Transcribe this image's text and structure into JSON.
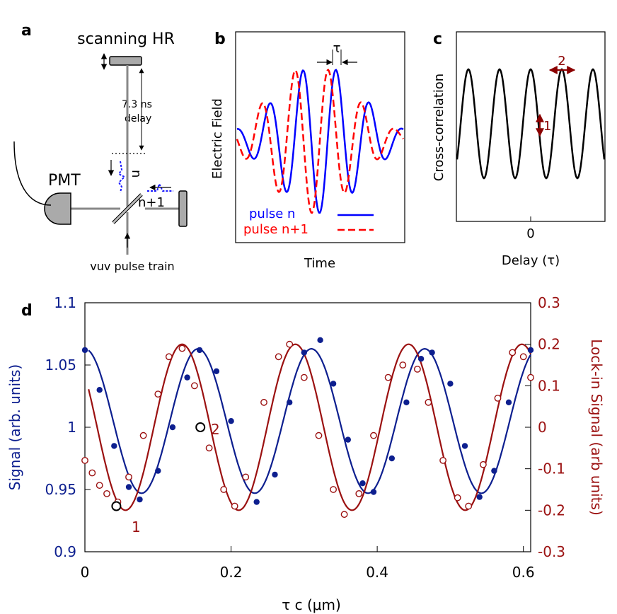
{
  "panel_a": {
    "letter": "a",
    "mirror_label": "scanning HR",
    "delay_value": "7.3 ns",
    "delay_word": "delay",
    "pmt_label": "PMT",
    "pulse_n": "n",
    "pulse_n1": "n+1",
    "beam_label": "vuv pulse train"
  },
  "panel_b": {
    "letter": "b",
    "ylabel": "Electric Field",
    "xlabel": "Time",
    "tau": "τ",
    "legend": [
      "pulse n",
      "pulse n+1"
    ],
    "colors": {
      "pulse_n": "#0000ff",
      "pulse_n1": "#ff0000"
    }
  },
  "panel_c": {
    "letter": "c",
    "ylabel": "Cross-correlation",
    "xlabel": "Delay (τ)",
    "xtick": "0",
    "marker1": "1",
    "marker2": "2",
    "color_marker": "#8b0000"
  },
  "panel_d": {
    "letter": "d",
    "xlabel": "τ c (μm)",
    "ylabel_left": "Signal (arb. units)",
    "ylabel_right": "Lock-in Signal (arb units)",
    "xticks": [
      "0",
      "0.2",
      "0.4",
      "0.6"
    ],
    "yticks_left": [
      "0.9",
      "0.95",
      "1",
      "1.05",
      "1.1"
    ],
    "yticks_right": [
      "-0.3",
      "-0.2",
      "-0.1",
      "0",
      "0.1",
      "0.2",
      "0.3"
    ],
    "point1": "1",
    "point2": "2",
    "colors": {
      "signal": "#0d1f8f",
      "lockin": "#9b1111"
    }
  },
  "chart_data": [
    {
      "type": "line",
      "title": "Electric Field",
      "xlabel": "Time",
      "ylabel": "Electric Field",
      "series": [
        {
          "name": "pulse n",
          "style": "solid",
          "description": "oscillating pulse, peak near center"
        },
        {
          "name": "pulse n+1",
          "style": "dashed",
          "description": "same pulse shifted by τ earlier"
        }
      ]
    },
    {
      "type": "line",
      "title": "Cross-correlation",
      "xlabel": "Delay (τ)",
      "ylabel": "Cross-correlation",
      "x_ticks": [
        "0"
      ],
      "series": [
        {
          "name": "cross-correlation",
          "description": "sinusoidal oscillation vs delay"
        }
      ]
    },
    {
      "type": "scatter",
      "xlabel": "τ c (μm)",
      "xlim": [
        0,
        0.61
      ],
      "ylabel": "Signal (arb. units)",
      "ylim": [
        0.9,
        1.1
      ],
      "y2label": "Lock-in Signal (arb units)",
      "y2lim": [
        -0.3,
        0.3
      ],
      "series": [
        {
          "name": "Signal (data)",
          "axis": "left",
          "marker": "filled-circle",
          "x": [
            0.0,
            0.02,
            0.04,
            0.06,
            0.075,
            0.1,
            0.12,
            0.14,
            0.157,
            0.18,
            0.2,
            0.22,
            0.235,
            0.26,
            0.28,
            0.3,
            0.322,
            0.34,
            0.36,
            0.38,
            0.395,
            0.42,
            0.44,
            0.46,
            0.475,
            0.5,
            0.52,
            0.54,
            0.56,
            0.58,
            0.61
          ],
          "y": [
            1.062,
            1.03,
            0.985,
            0.952,
            0.942,
            0.965,
            1.0,
            1.04,
            1.062,
            1.045,
            1.005,
            0.96,
            0.94,
            0.962,
            1.02,
            1.06,
            1.07,
            1.035,
            0.99,
            0.955,
            0.948,
            0.975,
            1.02,
            1.055,
            1.06,
            1.035,
            0.985,
            0.944,
            0.965,
            1.02,
            1.062
          ]
        },
        {
          "name": "Signal (fit)",
          "axis": "left",
          "style": "solid",
          "amplitude": 0.058,
          "offset": 1.005,
          "period_um": 0.155,
          "peak_um": 0.0
        },
        {
          "name": "Lock-in Signal (data)",
          "axis": "right",
          "marker": "open-circle",
          "x": [
            0.0,
            0.01,
            0.02,
            0.03,
            0.045,
            0.06,
            0.08,
            0.1,
            0.115,
            0.133,
            0.15,
            0.17,
            0.19,
            0.205,
            0.22,
            0.245,
            0.265,
            0.28,
            0.3,
            0.32,
            0.34,
            0.355,
            0.375,
            0.395,
            0.415,
            0.435,
            0.455,
            0.47,
            0.49,
            0.51,
            0.525,
            0.545,
            0.565,
            0.585,
            0.6,
            0.61
          ],
          "y": [
            -0.08,
            -0.11,
            -0.14,
            -0.16,
            -0.18,
            -0.12,
            -0.02,
            0.08,
            0.17,
            0.19,
            0.1,
            -0.05,
            -0.15,
            -0.19,
            -0.12,
            0.06,
            0.17,
            0.2,
            0.12,
            -0.02,
            -0.15,
            -0.21,
            -0.16,
            -0.02,
            0.12,
            0.15,
            0.14,
            0.06,
            -0.08,
            -0.17,
            -0.19,
            -0.09,
            0.07,
            0.18,
            0.17,
            0.12
          ]
        },
        {
          "name": "Lock-in Signal (fit)",
          "axis": "right",
          "style": "solid",
          "amplitude": 0.2,
          "offset": 0.0,
          "period_um": 0.155,
          "peak_um": 0.133
        }
      ],
      "annotations": [
        {
          "label": "1",
          "x": 0.043,
          "series": "Lock-in Signal",
          "y": -0.19
        },
        {
          "label": "2",
          "x": 0.158,
          "series": "Lock-in Signal",
          "y": 0.0
        }
      ]
    }
  ]
}
